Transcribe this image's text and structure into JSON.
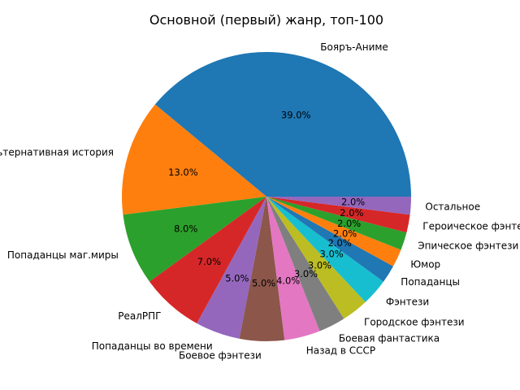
{
  "chart_data": {
    "type": "pie",
    "title": "Основной (первый) жанр, топ-100",
    "slices": [
      {
        "label": "Бояръ-Аниме",
        "value": 39.0,
        "pct_label": "39.0%",
        "color": "#1f77b4"
      },
      {
        "label": "Альтернативная история",
        "value": 13.0,
        "pct_label": "13.0%",
        "color": "#ff7f0e"
      },
      {
        "label": "Попаданцы маг.миры",
        "value": 8.0,
        "pct_label": "8.0%",
        "color": "#2ca02c"
      },
      {
        "label": "РеалРПГ",
        "value": 7.0,
        "pct_label": "7.0%",
        "color": "#d62728"
      },
      {
        "label": "Попаданцы во времени",
        "value": 5.0,
        "pct_label": "5.0%",
        "color": "#9467bd"
      },
      {
        "label": "Боевое фэнтези",
        "value": 5.0,
        "pct_label": "5.0%",
        "color": "#8c564b"
      },
      {
        "label": "Назад в СССР",
        "value": 4.0,
        "pct_label": "4.0%",
        "color": "#e377c2"
      },
      {
        "label": "Боевая фантастика",
        "value": 3.0,
        "pct_label": "3.0%",
        "color": "#7f7f7f"
      },
      {
        "label": "Городское фэнтези",
        "value": 3.0,
        "pct_label": "3.0%",
        "color": "#bcbd22"
      },
      {
        "label": "Фэнтези",
        "value": 3.0,
        "pct_label": "3.0%",
        "color": "#17becf"
      },
      {
        "label": "Попаданцы",
        "value": 2.0,
        "pct_label": "2.0%",
        "color": "#1f77b4"
      },
      {
        "label": "Юмор",
        "value": 2.0,
        "pct_label": "2.0%",
        "color": "#ff7f0e"
      },
      {
        "label": "Эпическое фэнтези",
        "value": 2.0,
        "pct_label": "2.0%",
        "color": "#2ca02c"
      },
      {
        "label": "Героическое фэнтези",
        "value": 2.0,
        "pct_label": "2.0%",
        "color": "#d62728"
      },
      {
        "label": "Остальное",
        "value": 2.0,
        "pct_label": "2.0%",
        "color": "#9467bd"
      }
    ],
    "start_angle_deg": 0,
    "direction": "counterclockwise",
    "legend": "none"
  }
}
